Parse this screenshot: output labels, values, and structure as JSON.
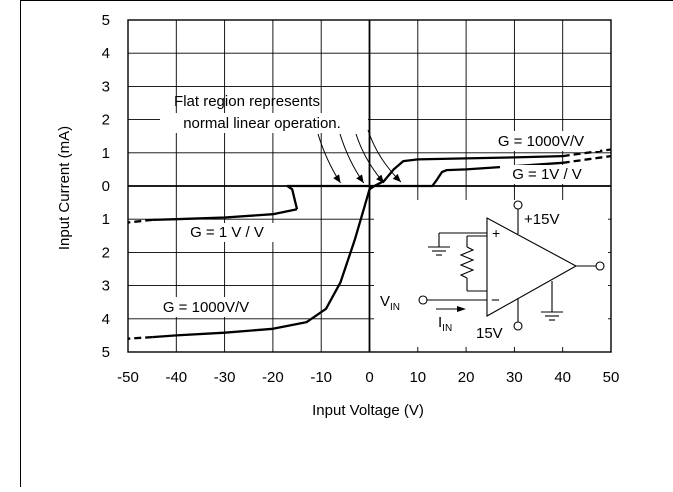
{
  "chart_data": {
    "type": "line",
    "title": "",
    "xlabel": "Input Voltage (V)",
    "ylabel": "Input Current (mA)",
    "xlim": [
      -50,
      50
    ],
    "ylim": [
      -5,
      5
    ],
    "grid": true,
    "x_ticks": [
      -50,
      -40,
      -30,
      -20,
      -10,
      0,
      10,
      20,
      30,
      40,
      50
    ],
    "x_tick_labels": [
      "-50",
      "-40",
      "-30",
      "-20",
      "-10",
      "0",
      "10",
      "20",
      "30",
      "40",
      "50"
    ],
    "y_ticks": [
      5,
      4,
      3,
      2,
      1,
      0,
      -1,
      -2,
      -3,
      -4,
      -5
    ],
    "y_tick_labels": [
      "5",
      "4",
      "3",
      "2",
      "1",
      "0",
      "1",
      "2",
      "3",
      "4",
      "5"
    ],
    "series": [
      {
        "name": "G = 1000V/V",
        "points": [
          [
            0,
            -0.1
          ],
          [
            1,
            0
          ],
          [
            3,
            0.15
          ],
          [
            5,
            0.5
          ],
          [
            7,
            0.75
          ],
          [
            10,
            0.8
          ],
          [
            20,
            0.83
          ],
          [
            30,
            0.86
          ],
          [
            40,
            0.9
          ]
        ],
        "dashed_points": [
          [
            40,
            0.9
          ],
          [
            50,
            1.1
          ]
        ]
      },
      {
        "name": "G = 1000V/V",
        "points": [
          [
            0,
            -0.1
          ],
          [
            -1,
            -0.6
          ],
          [
            -3,
            -1.6
          ],
          [
            -6,
            -2.9
          ],
          [
            -9,
            -3.7
          ],
          [
            -13,
            -4.1
          ],
          [
            -20,
            -4.3
          ],
          [
            -30,
            -4.42
          ],
          [
            -40,
            -4.5
          ],
          [
            -45,
            -4.55
          ]
        ],
        "dashed_points": [
          [
            -45,
            -4.55
          ],
          [
            -50,
            -4.6
          ]
        ]
      },
      {
        "name": "G = 1V / V",
        "points": [
          [
            -15,
            -0.7
          ],
          [
            -15.5,
            -0.4
          ],
          [
            -16,
            -0.1
          ],
          [
            -17,
            0
          ],
          [
            -10,
            0
          ],
          [
            0,
            0
          ],
          [
            13,
            0
          ],
          [
            14,
            0.2
          ],
          [
            15,
            0.42
          ],
          [
            16,
            0.48
          ],
          [
            20,
            0.5
          ],
          [
            30,
            0.6
          ],
          [
            40,
            0.7
          ]
        ],
        "dashed_points": [
          [
            40,
            0.7
          ],
          [
            50,
            0.9
          ]
        ]
      },
      {
        "name": "G = 1 V / V",
        "points": [
          [
            -15,
            -0.7
          ],
          [
            -20,
            -0.85
          ],
          [
            -30,
            -0.95
          ],
          [
            -40,
            -1.0
          ],
          [
            -45,
            -1.02
          ]
        ],
        "dashed_points": [
          [
            -45,
            -1.02
          ],
          [
            -50,
            -1.1
          ]
        ]
      }
    ],
    "annotations": {
      "flat_region_line1": "Flat region represents",
      "flat_region_line2": "normal linear operation.",
      "label_g1000_pos": "G = 1000V/V",
      "label_g1_pos": "G = 1V / V",
      "label_g1_neg": "G = 1 V / V",
      "label_g1000_neg": "G = 1000V/V"
    },
    "schematic": {
      "plus_supply": "+15V",
      "minus_supply": "15V",
      "vin": "V",
      "vin_sub": "IN",
      "iin": "I",
      "iin_sub": "IN",
      "plus_sign": "+",
      "minus_sign": "−"
    }
  }
}
